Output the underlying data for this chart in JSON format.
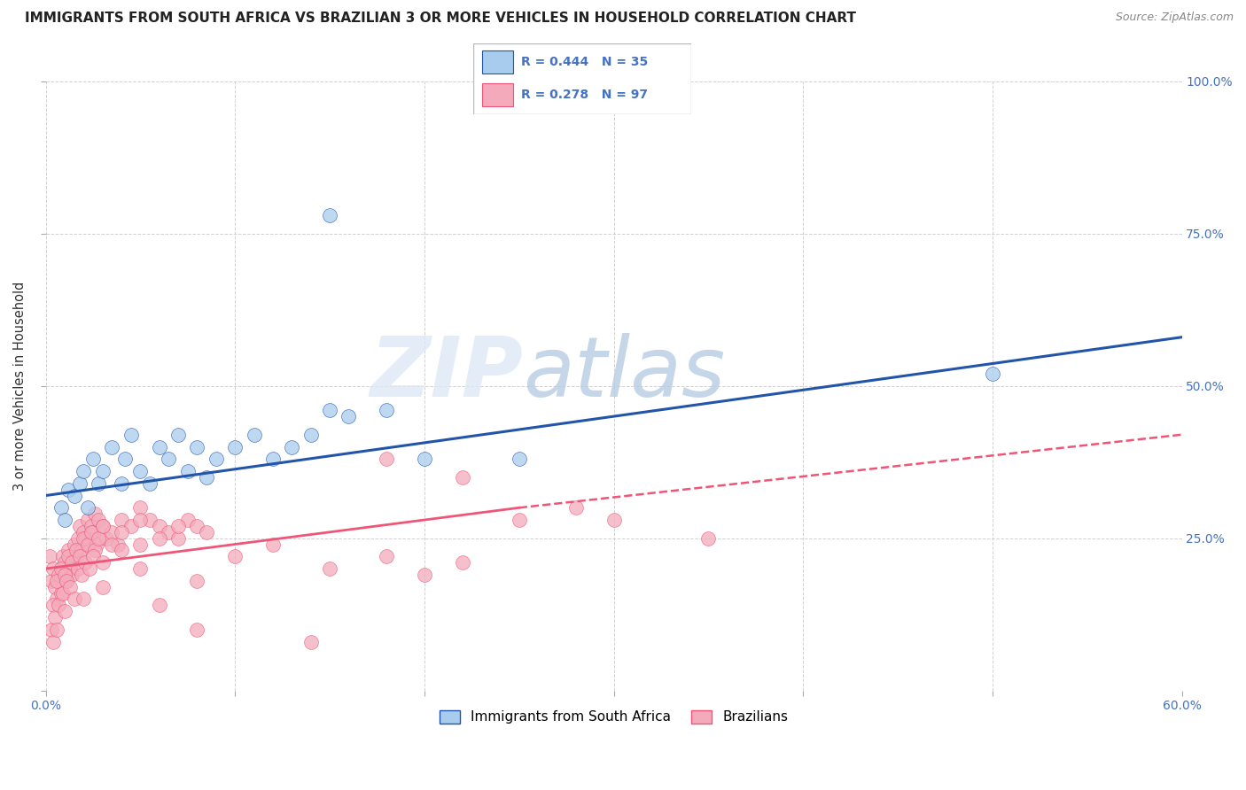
{
  "title": "IMMIGRANTS FROM SOUTH AFRICA VS BRAZILIAN 3 OR MORE VEHICLES IN HOUSEHOLD CORRELATION CHART",
  "source": "Source: ZipAtlas.com",
  "ylabel": "3 or more Vehicles in Household",
  "xlim": [
    0.0,
    60.0
  ],
  "ylim": [
    0.0,
    100.0
  ],
  "blue_R": 0.444,
  "blue_N": 35,
  "pink_R": 0.278,
  "pink_N": 97,
  "blue_color": "#A8CCEE",
  "pink_color": "#F4AABB",
  "blue_line_color": "#2255AA",
  "pink_line_color": "#EE5577",
  "watermark_zip": "ZIP",
  "watermark_atlas": "atlas",
  "legend_label_blue": "Immigrants from South Africa",
  "legend_label_pink": "Brazilians",
  "title_color": "#222222",
  "axis_color": "#4472C4",
  "blue_reg_x0": 0,
  "blue_reg_y0": 32.0,
  "blue_reg_x1": 60,
  "blue_reg_y1": 58.0,
  "pink_solid_x0": 0,
  "pink_solid_y0": 20.0,
  "pink_solid_x1": 25,
  "pink_solid_y1": 30.0,
  "pink_dash_x0": 25,
  "pink_dash_y0": 30.0,
  "pink_dash_x1": 60,
  "pink_dash_y1": 42.0,
  "blue_scatter_x": [
    0.8,
    1.0,
    1.2,
    1.5,
    1.8,
    2.0,
    2.2,
    2.5,
    2.8,
    3.0,
    3.5,
    4.0,
    4.2,
    4.5,
    5.0,
    5.5,
    6.0,
    6.5,
    7.0,
    7.5,
    8.0,
    8.5,
    9.0,
    10.0,
    11.0,
    12.0,
    13.0,
    14.0,
    15.0,
    16.0,
    18.0,
    20.0,
    25.0,
    50.0,
    15.0
  ],
  "blue_scatter_y": [
    30.0,
    28.0,
    33.0,
    32.0,
    34.0,
    36.0,
    30.0,
    38.0,
    34.0,
    36.0,
    40.0,
    34.0,
    38.0,
    42.0,
    36.0,
    34.0,
    40.0,
    38.0,
    42.0,
    36.0,
    40.0,
    35.0,
    38.0,
    40.0,
    42.0,
    38.0,
    40.0,
    42.0,
    46.0,
    45.0,
    46.0,
    38.0,
    38.0,
    52.0,
    78.0
  ],
  "pink_scatter_x": [
    0.2,
    0.3,
    0.4,
    0.5,
    0.6,
    0.7,
    0.8,
    0.9,
    1.0,
    1.1,
    1.2,
    1.3,
    1.4,
    1.5,
    1.6,
    1.7,
    1.8,
    1.9,
    2.0,
    2.1,
    2.2,
    2.3,
    2.4,
    2.5,
    2.6,
    2.7,
    2.8,
    3.0,
    3.2,
    3.5,
    3.8,
    4.0,
    4.5,
    5.0,
    5.5,
    6.0,
    6.5,
    7.0,
    7.5,
    8.0,
    0.4,
    0.6,
    0.8,
    1.0,
    1.2,
    1.4,
    1.6,
    1.8,
    2.0,
    2.2,
    2.4,
    2.6,
    2.8,
    3.0,
    3.5,
    4.0,
    5.0,
    6.0,
    7.0,
    8.5,
    0.3,
    0.5,
    0.7,
    0.9,
    1.1,
    1.3,
    1.5,
    1.7,
    1.9,
    2.1,
    2.3,
    2.5,
    3.0,
    4.0,
    5.0,
    0.4,
    0.6,
    1.0,
    2.0,
    3.0,
    5.0,
    8.0,
    10.0,
    12.0,
    15.0,
    18.0,
    20.0,
    22.0,
    25.0,
    30.0,
    35.0,
    18.0,
    22.0,
    28.0,
    14.0,
    6.0,
    8.0
  ],
  "pink_scatter_y": [
    22.0,
    18.0,
    20.0,
    17.0,
    15.0,
    19.0,
    16.0,
    22.0,
    21.0,
    18.0,
    23.0,
    20.0,
    19.0,
    24.0,
    22.0,
    25.0,
    27.0,
    23.0,
    26.0,
    25.0,
    28.0,
    24.0,
    27.0,
    26.0,
    29.0,
    24.0,
    28.0,
    27.0,
    25.0,
    26.0,
    24.0,
    28.0,
    27.0,
    30.0,
    28.0,
    27.0,
    26.0,
    25.0,
    28.0,
    27.0,
    14.0,
    18.0,
    20.0,
    19.0,
    22.0,
    21.0,
    23.0,
    22.0,
    25.0,
    24.0,
    26.0,
    23.0,
    25.0,
    27.0,
    24.0,
    26.0,
    28.0,
    25.0,
    27.0,
    26.0,
    10.0,
    12.0,
    14.0,
    16.0,
    18.0,
    17.0,
    15.0,
    20.0,
    19.0,
    21.0,
    20.0,
    22.0,
    21.0,
    23.0,
    24.0,
    8.0,
    10.0,
    13.0,
    15.0,
    17.0,
    20.0,
    18.0,
    22.0,
    24.0,
    20.0,
    22.0,
    19.0,
    21.0,
    28.0,
    28.0,
    25.0,
    38.0,
    35.0,
    30.0,
    8.0,
    14.0,
    10.0
  ]
}
